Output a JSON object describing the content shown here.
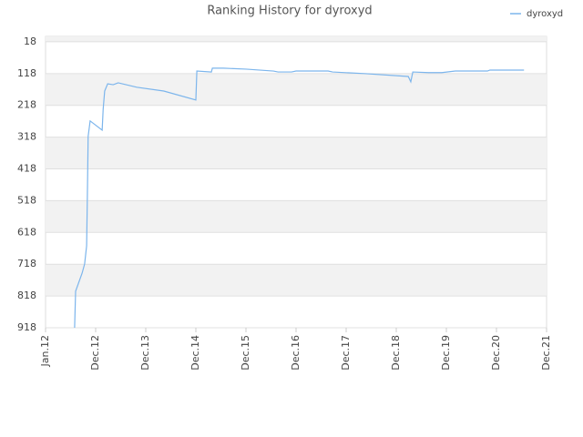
{
  "chart_data": {
    "type": "line",
    "title": "Ranking History for dyroxyd",
    "x": [
      0.58,
      0.6,
      0.73,
      0.78,
      0.82,
      0.84,
      0.85,
      0.89,
      1.13,
      1.15,
      1.18,
      1.24,
      1.35,
      1.45,
      1.82,
      2.36,
      3.0,
      3.02,
      3.31,
      3.33,
      3.55,
      4.0,
      4.55,
      4.64,
      4.91,
      5.0,
      5.64,
      5.73,
      6.36,
      7.24,
      7.29,
      7.33,
      7.64,
      7.91,
      8.18,
      8.82,
      8.87,
      9.55
    ],
    "series": [
      {
        "name": "dyroxyd",
        "color": "#7cb5ec",
        "values": [
          918,
          803,
          746,
          717,
          660,
          445,
          316,
          267,
          296,
          230,
          173,
          150,
          153,
          147,
          161,
          173,
          201,
          110,
          113,
          101,
          101,
          104,
          110,
          113,
          113,
          110,
          110,
          113,
          118,
          127,
          144,
          113,
          115,
          115,
          110,
          110,
          107,
          107
        ]
      }
    ],
    "xlim": [
      0,
      10
    ],
    "xticks": [
      {
        "value": 0,
        "label": "Jan.12"
      },
      {
        "value": 1,
        "label": "Dec.12"
      },
      {
        "value": 2,
        "label": "Dec.13"
      },
      {
        "value": 3,
        "label": "Dec.14"
      },
      {
        "value": 4,
        "label": "Dec.15"
      },
      {
        "value": 5,
        "label": "Dec.16"
      },
      {
        "value": 6,
        "label": "Dec.17"
      },
      {
        "value": 7,
        "label": "Dec.18"
      },
      {
        "value": 8,
        "label": "Dec.19"
      },
      {
        "value": 9,
        "label": "Dec.20"
      },
      {
        "value": 10,
        "label": "Dec.21"
      }
    ],
    "ylim": [
      918,
      1
    ],
    "yticks": [
      18,
      118,
      218,
      318,
      418,
      518,
      618,
      718,
      818,
      918
    ],
    "grid": true,
    "legend": "top-right"
  }
}
